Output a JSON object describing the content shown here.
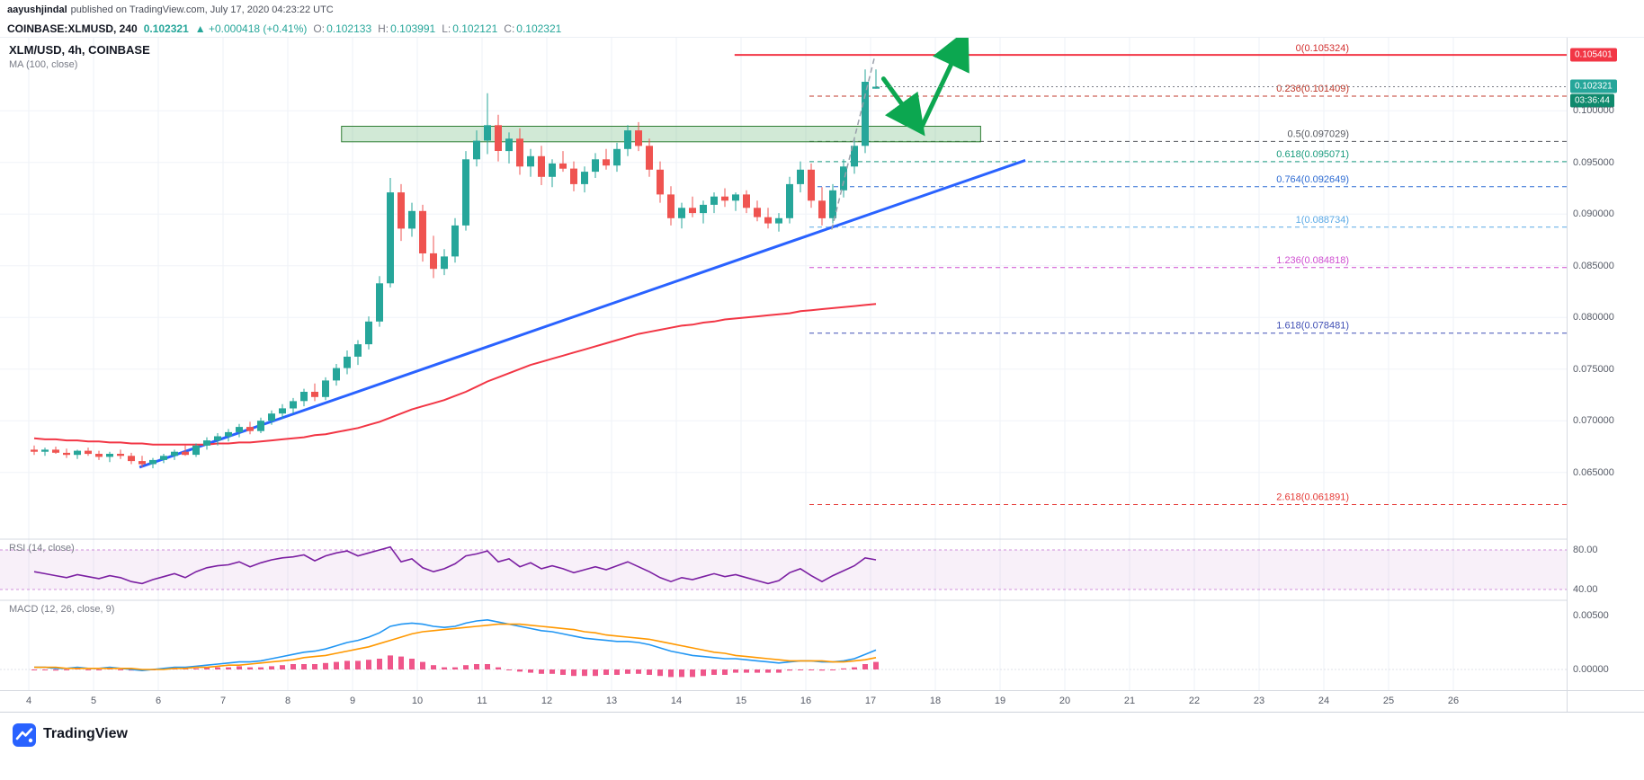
{
  "attribution": {
    "author": "aayushjindal",
    "rest": "published on TradingView.com, July 17, 2020 04:23:22 UTC"
  },
  "symbol_bar": {
    "symbol": "COINBASE:XLMUSD, 240",
    "last": "0.102321",
    "change": "▲ +0.000418 (+0.41%)",
    "ohlc": [
      {
        "label": "O:",
        "value": "0.102133"
      },
      {
        "label": "H:",
        "value": "0.103991"
      },
      {
        "label": "L:",
        "value": "0.102121"
      },
      {
        "label": "C:",
        "value": "0.102321"
      }
    ]
  },
  "legend": {
    "title": "XLM/USD, 4h, COINBASE",
    "ma": "MA (100, close)"
  },
  "panels": {
    "rsi_label": "RSI (14, close)",
    "macd_label": "MACD (12, 26, close, 9)"
  },
  "price_axis": {
    "labels": [
      {
        "text": "0.100000",
        "value": 0.1
      },
      {
        "text": "0.095000",
        "value": 0.095
      },
      {
        "text": "0.090000",
        "value": 0.09
      },
      {
        "text": "0.085000",
        "value": 0.085
      },
      {
        "text": "0.080000",
        "value": 0.08
      },
      {
        "text": "0.075000",
        "value": 0.075
      },
      {
        "text": "0.070000",
        "value": 0.07
      },
      {
        "text": "0.065000",
        "value": 0.065
      }
    ],
    "badges": {
      "high": {
        "text": "0.105401",
        "value": 0.105401
      },
      "last": {
        "text": "0.102321",
        "value": 0.102321
      },
      "countdown": {
        "text": "03:36:44"
      }
    }
  },
  "time_axis": {
    "labels": [
      {
        "text": "4",
        "day": 4
      },
      {
        "text": "5",
        "day": 5
      },
      {
        "text": "6",
        "day": 6
      },
      {
        "text": "7",
        "day": 7
      },
      {
        "text": "8",
        "day": 8
      },
      {
        "text": "9",
        "day": 9
      },
      {
        "text": "10",
        "day": 10
      },
      {
        "text": "11",
        "day": 11
      },
      {
        "text": "12",
        "day": 12
      },
      {
        "text": "13",
        "day": 13
      },
      {
        "text": "14",
        "day": 14
      },
      {
        "text": "15",
        "day": 15
      },
      {
        "text": "16",
        "day": 16
      },
      {
        "text": "17",
        "day": 17
      },
      {
        "text": "18",
        "day": 18
      },
      {
        "text": "19",
        "day": 19
      },
      {
        "text": "20",
        "day": 20
      },
      {
        "text": "21",
        "day": 21
      },
      {
        "text": "22",
        "day": 22
      },
      {
        "text": "23",
        "day": 23
      },
      {
        "text": "24",
        "day": 24
      },
      {
        "text": "25",
        "day": 25
      },
      {
        "text": "26",
        "day": 26
      }
    ]
  },
  "annotations": {
    "resistance_line": {
      "price": 0.105401,
      "from_day": 14.9
    },
    "resistance_zone": {
      "from_day": 8.83,
      "to_day": 18.7,
      "price_top": 0.0985,
      "price_bottom": 0.097
    },
    "trendline": {
      "from_day": 5.71,
      "from_price": 0.0655,
      "to_day": 19.39,
      "to_price": 0.0952
    },
    "projection": {
      "from_day": 16.4,
      "from_price": 0.0885,
      "to_day": 17.06,
      "to_price": 0.10515
    },
    "arrows": [
      {
        "from_day": 17.2,
        "from_price": 0.1031,
        "to_day": 17.72,
        "to_price": 0.0986
      },
      {
        "from_day": 17.78,
        "from_price": 0.0983,
        "to_day": 18.42,
        "to_price": 0.1068
      }
    ],
    "last_price": 0.102321
  },
  "chart_data": {
    "type": "candlestick",
    "title": "XLM/USD, 4h, COINBASE",
    "interval_hours": 4,
    "start_label": "July 4",
    "end_label": "July 17, 2020 04:00 UTC",
    "x_days": [
      4,
      5,
      6,
      7,
      8,
      9,
      10,
      11,
      12,
      13,
      14,
      15,
      16,
      17,
      18,
      19,
      20,
      21,
      22,
      23,
      24,
      25,
      26
    ],
    "ylim": [
      0.0535,
      0.1075
    ],
    "candles": [
      [
        0.0672,
        0.0676,
        0.0667,
        0.067
      ],
      [
        0.067,
        0.0674,
        0.0666,
        0.0672
      ],
      [
        0.0672,
        0.0675,
        0.0668,
        0.0669
      ],
      [
        0.0669,
        0.0673,
        0.0664,
        0.0667
      ],
      [
        0.0667,
        0.0672,
        0.0663,
        0.0671
      ],
      [
        0.0671,
        0.0674,
        0.0666,
        0.0668
      ],
      [
        0.0668,
        0.0671,
        0.0662,
        0.0665
      ],
      [
        0.0665,
        0.067,
        0.066,
        0.0668
      ],
      [
        0.0668,
        0.0672,
        0.0663,
        0.0666
      ],
      [
        0.0666,
        0.0669,
        0.0658,
        0.0661
      ],
      [
        0.0661,
        0.0666,
        0.0655,
        0.0658
      ],
      [
        0.0658,
        0.0664,
        0.0654,
        0.0662
      ],
      [
        0.0662,
        0.0668,
        0.0659,
        0.0666
      ],
      [
        0.0666,
        0.0672,
        0.0662,
        0.067
      ],
      [
        0.067,
        0.0676,
        0.0666,
        0.0667
      ],
      [
        0.0667,
        0.0678,
        0.0665,
        0.0676
      ],
      [
        0.0676,
        0.0684,
        0.0672,
        0.0681
      ],
      [
        0.0681,
        0.0688,
        0.0676,
        0.0685
      ],
      [
        0.0685,
        0.0692,
        0.068,
        0.0689
      ],
      [
        0.0689,
        0.0697,
        0.0684,
        0.0694
      ],
      [
        0.0694,
        0.0699,
        0.0687,
        0.069
      ],
      [
        0.069,
        0.0703,
        0.0688,
        0.07
      ],
      [
        0.07,
        0.071,
        0.0696,
        0.0707
      ],
      [
        0.0707,
        0.0716,
        0.0702,
        0.0712
      ],
      [
        0.0712,
        0.0722,
        0.0707,
        0.0719
      ],
      [
        0.0719,
        0.0731,
        0.0714,
        0.0728
      ],
      [
        0.0728,
        0.0736,
        0.0719,
        0.0723
      ],
      [
        0.0723,
        0.0742,
        0.072,
        0.0739
      ],
      [
        0.0739,
        0.0755,
        0.0734,
        0.0751
      ],
      [
        0.0751,
        0.0768,
        0.0745,
        0.0762
      ],
      [
        0.0762,
        0.0778,
        0.0754,
        0.0774
      ],
      [
        0.0774,
        0.0801,
        0.0769,
        0.0796
      ],
      [
        0.0796,
        0.084,
        0.0791,
        0.0833
      ],
      [
        0.0833,
        0.0935,
        0.0829,
        0.0921
      ],
      [
        0.0921,
        0.0929,
        0.0874,
        0.0886
      ],
      [
        0.0886,
        0.0911,
        0.0878,
        0.0903
      ],
      [
        0.0903,
        0.0909,
        0.0854,
        0.0862
      ],
      [
        0.0862,
        0.0879,
        0.0838,
        0.0847
      ],
      [
        0.0847,
        0.0866,
        0.0841,
        0.0859
      ],
      [
        0.0859,
        0.0896,
        0.0853,
        0.0889
      ],
      [
        0.0889,
        0.0961,
        0.0884,
        0.0953
      ],
      [
        0.0953,
        0.0981,
        0.0946,
        0.0971
      ],
      [
        0.0971,
        0.1017,
        0.0958,
        0.0986
      ],
      [
        0.0986,
        0.0996,
        0.0951,
        0.0961
      ],
      [
        0.0961,
        0.0979,
        0.0949,
        0.0973
      ],
      [
        0.0973,
        0.0983,
        0.0938,
        0.0946
      ],
      [
        0.0946,
        0.0963,
        0.0936,
        0.0956
      ],
      [
        0.0956,
        0.0966,
        0.0928,
        0.0936
      ],
      [
        0.0936,
        0.0953,
        0.0926,
        0.0949
      ],
      [
        0.0949,
        0.0961,
        0.0941,
        0.0944
      ],
      [
        0.0944,
        0.0951,
        0.0922,
        0.0929
      ],
      [
        0.0929,
        0.0946,
        0.0921,
        0.0941
      ],
      [
        0.0941,
        0.0959,
        0.0935,
        0.0953
      ],
      [
        0.0953,
        0.0963,
        0.0943,
        0.0947
      ],
      [
        0.0947,
        0.0969,
        0.0941,
        0.0963
      ],
      [
        0.0963,
        0.0986,
        0.0956,
        0.0981
      ],
      [
        0.0981,
        0.0989,
        0.0961,
        0.0966
      ],
      [
        0.0966,
        0.0973,
        0.0936,
        0.0943
      ],
      [
        0.0943,
        0.0951,
        0.0911,
        0.0919
      ],
      [
        0.0919,
        0.0927,
        0.0889,
        0.0896
      ],
      [
        0.0896,
        0.0911,
        0.0886,
        0.0906
      ],
      [
        0.0906,
        0.0917,
        0.0897,
        0.0901
      ],
      [
        0.0901,
        0.0913,
        0.0891,
        0.0909
      ],
      [
        0.0909,
        0.0921,
        0.0901,
        0.0917
      ],
      [
        0.0917,
        0.0925,
        0.0907,
        0.0913
      ],
      [
        0.0913,
        0.0921,
        0.0903,
        0.0919
      ],
      [
        0.0919,
        0.0923,
        0.0901,
        0.0906
      ],
      [
        0.0906,
        0.0913,
        0.0893,
        0.0897
      ],
      [
        0.0897,
        0.0906,
        0.0886,
        0.0891
      ],
      [
        0.0891,
        0.0901,
        0.0883,
        0.0896
      ],
      [
        0.0896,
        0.0936,
        0.0891,
        0.0929
      ],
      [
        0.0929,
        0.0951,
        0.0921,
        0.0943
      ],
      [
        0.0943,
        0.0949,
        0.0906,
        0.0913
      ],
      [
        0.0913,
        0.0926,
        0.0889,
        0.0896
      ],
      [
        0.0896,
        0.0929,
        0.0891,
        0.0923
      ],
      [
        0.0923,
        0.0953,
        0.0916,
        0.0946
      ],
      [
        0.0946,
        0.0973,
        0.0939,
        0.0966
      ],
      [
        0.0966,
        0.104,
        0.0959,
        0.1028
      ],
      [
        0.102133,
        0.103991,
        0.102121,
        0.102321
      ]
    ],
    "ma100": [
      0.0683,
      0.0682,
      0.0682,
      0.0681,
      0.0681,
      0.068,
      0.068,
      0.0679,
      0.0679,
      0.0678,
      0.0678,
      0.0677,
      0.0677,
      0.0677,
      0.0677,
      0.0677,
      0.0677,
      0.0678,
      0.0678,
      0.0679,
      0.0679,
      0.068,
      0.0681,
      0.0682,
      0.0683,
      0.0684,
      0.0686,
      0.0687,
      0.0689,
      0.0691,
      0.0693,
      0.0696,
      0.0699,
      0.0703,
      0.0707,
      0.0711,
      0.0714,
      0.0717,
      0.072,
      0.0724,
      0.0728,
      0.0733,
      0.0738,
      0.0742,
      0.0746,
      0.075,
      0.0754,
      0.0757,
      0.076,
      0.0763,
      0.0766,
      0.0769,
      0.0772,
      0.0775,
      0.0778,
      0.0781,
      0.0784,
      0.0786,
      0.0788,
      0.079,
      0.0792,
      0.0793,
      0.0795,
      0.0796,
      0.0798,
      0.0799,
      0.08,
      0.0801,
      0.0802,
      0.0803,
      0.0804,
      0.0806,
      0.0807,
      0.0808,
      0.0809,
      0.081,
      0.0811,
      0.0812,
      0.0813
    ],
    "fib_levels": [
      {
        "label": "0(0.105324)",
        "value": 0.105324,
        "color": "#d32f2f",
        "solid": true
      },
      {
        "label": "0.236(0.101409)",
        "value": 0.101409,
        "color": "#c0392b"
      },
      {
        "label": "0.5(0.097029)",
        "value": 0.097029,
        "color": "#55575e"
      },
      {
        "label": "0.618(0.095071)",
        "value": 0.095071,
        "color": "#189b7d"
      },
      {
        "label": "0.764(0.092649)",
        "value": 0.092649,
        "color": "#2d6bd3"
      },
      {
        "label": "1(0.088734)",
        "value": 0.088734,
        "color": "#5aa9e6"
      },
      {
        "label": "1.236(0.084818)",
        "value": 0.084818,
        "color": "#cf4fd1"
      },
      {
        "label": "1.618(0.078481)",
        "value": 0.078481,
        "color": "#4150b5"
      },
      {
        "label": "2.618(0.061891)",
        "value": 0.061891,
        "color": "#e53935"
      }
    ],
    "rsi": {
      "upper": 80,
      "lower": 40,
      "axis_labels": [
        {
          "text": "80.00",
          "value": 80
        },
        {
          "text": "40.00",
          "value": 40
        }
      ],
      "values": [
        58,
        56,
        54,
        52,
        55,
        53,
        51,
        54,
        52,
        48,
        46,
        50,
        53,
        56,
        52,
        58,
        62,
        64,
        65,
        68,
        63,
        67,
        70,
        72,
        73,
        75,
        69,
        74,
        77,
        79,
        74,
        77,
        80,
        83,
        68,
        71,
        62,
        58,
        61,
        66,
        74,
        76,
        79,
        68,
        71,
        63,
        67,
        61,
        64,
        61,
        57,
        60,
        63,
        60,
        64,
        68,
        63,
        58,
        52,
        48,
        52,
        50,
        53,
        56,
        53,
        55,
        52,
        49,
        46,
        49,
        57,
        61,
        54,
        48,
        54,
        59,
        64,
        72,
        70
      ]
    },
    "macd": {
      "axis_labels": [
        {
          "text": "0.00500",
          "value": 0.005
        },
        {
          "text": "0.00000",
          "value": 0
        }
      ],
      "macd": [
        0.0002,
        0.0002,
        0.0001,
        0.0001,
        0.0002,
        0.0001,
        0.0001,
        0.0002,
        0.0001,
        0.0,
        -0.0001,
        0.0,
        0.0001,
        0.0002,
        0.0002,
        0.0003,
        0.0004,
        0.0005,
        0.0006,
        0.0007,
        0.0007,
        0.0008,
        0.001,
        0.0012,
        0.0014,
        0.0016,
        0.0017,
        0.0019,
        0.0022,
        0.0025,
        0.0027,
        0.003,
        0.0034,
        0.004,
        0.0042,
        0.0043,
        0.0042,
        0.004,
        0.0039,
        0.004,
        0.0043,
        0.0045,
        0.0046,
        0.0044,
        0.0042,
        0.004,
        0.0038,
        0.0036,
        0.0035,
        0.0033,
        0.0031,
        0.0029,
        0.0028,
        0.0027,
        0.0026,
        0.0026,
        0.0025,
        0.0023,
        0.002,
        0.0017,
        0.0015,
        0.0013,
        0.0012,
        0.0011,
        0.001,
        0.001,
        0.0009,
        0.0008,
        0.0007,
        0.0006,
        0.0007,
        0.0008,
        0.0008,
        0.0007,
        0.0007,
        0.0008,
        0.001,
        0.0014,
        0.0018
      ],
      "signal": [
        0.0002,
        0.0002,
        0.0002,
        0.0001,
        0.0001,
        0.0001,
        0.0001,
        0.0001,
        0.0001,
        0.0001,
        0.0,
        0.0,
        0.0,
        0.0001,
        0.0001,
        0.0002,
        0.0002,
        0.0003,
        0.0004,
        0.0004,
        0.0005,
        0.0006,
        0.0007,
        0.0008,
        0.0009,
        0.0011,
        0.0012,
        0.0013,
        0.0015,
        0.0017,
        0.0019,
        0.0021,
        0.0024,
        0.0027,
        0.003,
        0.0033,
        0.0035,
        0.0036,
        0.0037,
        0.0038,
        0.0039,
        0.004,
        0.0041,
        0.0042,
        0.0042,
        0.0042,
        0.0041,
        0.004,
        0.0039,
        0.0038,
        0.0037,
        0.0035,
        0.0034,
        0.0032,
        0.0031,
        0.003,
        0.0029,
        0.0028,
        0.0026,
        0.0024,
        0.0022,
        0.002,
        0.0018,
        0.0016,
        0.0015,
        0.0013,
        0.0012,
        0.0011,
        0.001,
        0.0009,
        0.0008,
        0.0008,
        0.0008,
        0.0008,
        0.0007,
        0.0007,
        0.0008,
        0.0009,
        0.0011
      ]
    }
  },
  "footer": {
    "brand": "TradingView"
  },
  "colors": {
    "up": "#26a69a",
    "down": "#ef5350",
    "ma": "#f23645",
    "trend": "#2962ff",
    "arrow": "#0ca750",
    "zone_fill": "rgba(103,183,119,0.30)",
    "zone_border": "#2e7d32",
    "rsi": "#7b1fa2",
    "macd": "#2196f3",
    "signal": "#ff9800",
    "hist": "#e91e63",
    "badge_high": "#f23645",
    "badge_last": "#26a69a",
    "badge_countdown": "#0f8a6d"
  }
}
